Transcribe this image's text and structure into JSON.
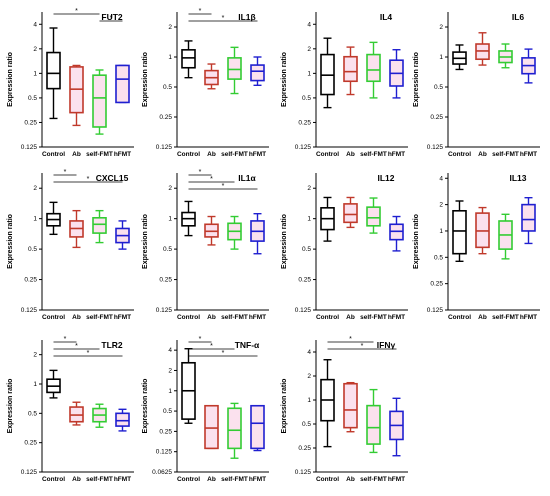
{
  "y_axis_label": "Expression ratio",
  "group_colors": {
    "Control": "#000000",
    "Ab": "#c0392b",
    "self-FMT": "#33cc33",
    "hFMT": "#1f1fd0"
  },
  "box_fill": "#fbe1ee",
  "chart_data": [
    {
      "type": "box",
      "title": "FUT2",
      "ylabel": "Expression ratio",
      "log_scale": true,
      "y_ticks": [
        "0.125",
        "0.25",
        "0.5",
        "1",
        "2",
        "4"
      ],
      "categories": [
        "Control",
        "Ab",
        "self-FMT",
        "hFMT"
      ],
      "boxes": [
        {
          "group": "Control",
          "min": 0.28,
          "q1": 0.65,
          "median": 1.0,
          "q3": 1.8,
          "max": 3.6
        },
        {
          "group": "Ab",
          "min": 0.23,
          "q1": 0.33,
          "median": 0.64,
          "q3": 1.2,
          "max": 1.25
        },
        {
          "group": "self-FMT",
          "min": 0.18,
          "q1": 0.22,
          "median": 0.5,
          "q3": 0.95,
          "max": 1.1
        },
        {
          "group": "hFMT",
          "min": 0.44,
          "q1": 0.44,
          "median": 0.85,
          "q3": 1.25,
          "max": 1.25
        }
      ],
      "significance": [
        {
          "from": "Control",
          "to": "self-FMT",
          "label": "*"
        },
        {
          "from": "self-FMT",
          "to": "hFMT",
          "label": "*"
        }
      ]
    },
    {
      "type": "box",
      "title": "IL1β",
      "ylabel": "Expression ratio",
      "log_scale": true,
      "y_ticks": [
        "0.125",
        "0.25",
        "0.5",
        "1",
        "2"
      ],
      "categories": [
        "Control",
        "Ab",
        "self-FMT",
        "hFMT"
      ],
      "boxes": [
        {
          "group": "Control",
          "min": 0.62,
          "q1": 0.78,
          "median": 0.98,
          "q3": 1.18,
          "max": 1.45
        },
        {
          "group": "Ab",
          "min": 0.48,
          "q1": 0.53,
          "median": 0.62,
          "q3": 0.73,
          "max": 0.85
        },
        {
          "group": "self-FMT",
          "min": 0.43,
          "q1": 0.6,
          "median": 0.75,
          "q3": 0.98,
          "max": 1.25
        },
        {
          "group": "hFMT",
          "min": 0.52,
          "q1": 0.58,
          "median": 0.72,
          "q3": 0.83,
          "max": 1.0
        }
      ],
      "significance": [
        {
          "from": "Control",
          "to": "Ab",
          "label": "*"
        },
        {
          "from": "Control",
          "to": "hFMT",
          "label": "*"
        }
      ]
    },
    {
      "type": "box",
      "title": "IL4",
      "ylabel": "Expression ratio",
      "log_scale": true,
      "y_ticks": [
        "0.125",
        "0.25",
        "0.5",
        "1",
        "2",
        "4"
      ],
      "categories": [
        "Control",
        "Ab",
        "self-FMT",
        "hFMT"
      ],
      "boxes": [
        {
          "group": "Control",
          "min": 0.38,
          "q1": 0.55,
          "median": 0.95,
          "q3": 1.7,
          "max": 2.7
        },
        {
          "group": "Ab",
          "min": 0.55,
          "q1": 0.8,
          "median": 1.05,
          "q3": 1.6,
          "max": 2.1
        },
        {
          "group": "self-FMT",
          "min": 0.5,
          "q1": 0.8,
          "median": 1.1,
          "q3": 1.7,
          "max": 2.4
        },
        {
          "group": "hFMT",
          "min": 0.5,
          "q1": 0.7,
          "median": 1.0,
          "q3": 1.45,
          "max": 1.95
        }
      ],
      "significance": []
    },
    {
      "type": "box",
      "title": "IL6",
      "ylabel": "Expression ratio",
      "log_scale": true,
      "y_ticks": [
        "0.125",
        "0.25",
        "0.5",
        "1",
        "2"
      ],
      "categories": [
        "Control",
        "Ab",
        "self-FMT",
        "hFMT"
      ],
      "boxes": [
        {
          "group": "Control",
          "min": 0.75,
          "q1": 0.85,
          "median": 0.97,
          "q3": 1.12,
          "max": 1.32
        },
        {
          "group": "Ab",
          "min": 0.83,
          "q1": 0.95,
          "median": 1.15,
          "q3": 1.35,
          "max": 1.75
        },
        {
          "group": "self-FMT",
          "min": 0.78,
          "q1": 0.88,
          "median": 1.0,
          "q3": 1.15,
          "max": 1.35
        },
        {
          "group": "hFMT",
          "min": 0.55,
          "q1": 0.68,
          "median": 0.82,
          "q3": 0.98,
          "max": 1.2
        }
      ],
      "significance": []
    },
    {
      "type": "box",
      "title": "CXCL15",
      "ylabel": "Expression ratio",
      "log_scale": true,
      "y_ticks": [
        "0.125",
        "0.25",
        "0.5",
        "1",
        "2"
      ],
      "categories": [
        "Control",
        "Ab",
        "self-FMT",
        "hFMT"
      ],
      "boxes": [
        {
          "group": "Control",
          "min": 0.7,
          "q1": 0.85,
          "median": 0.98,
          "q3": 1.12,
          "max": 1.45
        },
        {
          "group": "Ab",
          "min": 0.52,
          "q1": 0.66,
          "median": 0.8,
          "q3": 0.95,
          "max": 1.2
        },
        {
          "group": "self-FMT",
          "min": 0.58,
          "q1": 0.72,
          "median": 0.88,
          "q3": 1.02,
          "max": 1.2
        },
        {
          "group": "hFMT",
          "min": 0.5,
          "q1": 0.58,
          "median": 0.68,
          "q3": 0.8,
          "max": 0.95
        }
      ],
      "significance": [
        {
          "from": "Control",
          "to": "Ab",
          "label": "*"
        },
        {
          "from": "Control",
          "to": "hFMT",
          "label": "*"
        }
      ]
    },
    {
      "type": "box",
      "title": "IL1α",
      "ylabel": "Expression ratio",
      "log_scale": true,
      "y_ticks": [
        "0.125",
        "0.25",
        "0.5",
        "1",
        "2"
      ],
      "categories": [
        "Control",
        "Ab",
        "self-FMT",
        "hFMT"
      ],
      "boxes": [
        {
          "group": "Control",
          "min": 0.68,
          "q1": 0.85,
          "median": 1.0,
          "q3": 1.15,
          "max": 1.48
        },
        {
          "group": "Ab",
          "min": 0.55,
          "q1": 0.66,
          "median": 0.75,
          "q3": 0.88,
          "max": 1.05
        },
        {
          "group": "self-FMT",
          "min": 0.5,
          "q1": 0.62,
          "median": 0.75,
          "q3": 0.9,
          "max": 1.05
        },
        {
          "group": "hFMT",
          "min": 0.45,
          "q1": 0.6,
          "median": 0.75,
          "q3": 0.95,
          "max": 1.12
        }
      ],
      "significance": [
        {
          "from": "Control",
          "to": "Ab",
          "label": "*"
        },
        {
          "from": "Control",
          "to": "self-FMT",
          "label": "*"
        },
        {
          "from": "Control",
          "to": "hFMT",
          "label": "*"
        }
      ]
    },
    {
      "type": "box",
      "title": "IL12",
      "ylabel": "Expression ratio",
      "log_scale": true,
      "y_ticks": [
        "0.125",
        "0.25",
        "0.5",
        "1",
        "2"
      ],
      "categories": [
        "Control",
        "Ab",
        "self-FMT",
        "hFMT"
      ],
      "boxes": [
        {
          "group": "Control",
          "min": 0.6,
          "q1": 0.78,
          "median": 1.0,
          "q3": 1.28,
          "max": 1.62
        },
        {
          "group": "Ab",
          "min": 0.82,
          "q1": 0.92,
          "median": 1.1,
          "q3": 1.4,
          "max": 1.62
        },
        {
          "group": "self-FMT",
          "min": 0.72,
          "q1": 0.85,
          "median": 1.02,
          "q3": 1.3,
          "max": 1.6
        },
        {
          "group": "hFMT",
          "min": 0.48,
          "q1": 0.62,
          "median": 0.75,
          "q3": 0.88,
          "max": 1.05
        }
      ],
      "significance": []
    },
    {
      "type": "box",
      "title": "IL13",
      "ylabel": "Expression ratio",
      "log_scale": true,
      "y_ticks": [
        "0.125",
        "0.25",
        "0.5",
        "1",
        "2",
        "4"
      ],
      "categories": [
        "Control",
        "Ab",
        "self-FMT",
        "hFMT"
      ],
      "boxes": [
        {
          "group": "Control",
          "min": 0.45,
          "q1": 0.55,
          "median": 1.0,
          "q3": 1.7,
          "max": 2.2
        },
        {
          "group": "Ab",
          "min": 0.55,
          "q1": 0.65,
          "median": 1.0,
          "q3": 1.6,
          "max": 1.85
        },
        {
          "group": "self-FMT",
          "min": 0.48,
          "q1": 0.62,
          "median": 0.9,
          "q3": 1.3,
          "max": 1.55
        },
        {
          "group": "hFMT",
          "min": 0.72,
          "q1": 1.0,
          "median": 1.35,
          "q3": 2.0,
          "max": 2.4
        }
      ],
      "significance": []
    },
    {
      "type": "box",
      "title": "TLR2",
      "ylabel": "Expression ratio",
      "log_scale": true,
      "y_ticks": [
        "0.125",
        "0.25",
        "0.5",
        "1",
        "2"
      ],
      "categories": [
        "Control",
        "Ab",
        "self-FMT",
        "hFMT"
      ],
      "boxes": [
        {
          "group": "Control",
          "min": 0.72,
          "q1": 0.82,
          "median": 0.95,
          "q3": 1.12,
          "max": 1.38
        },
        {
          "group": "Ab",
          "min": 0.38,
          "q1": 0.41,
          "median": 0.48,
          "q3": 0.58,
          "max": 0.65
        },
        {
          "group": "self-FMT",
          "min": 0.36,
          "q1": 0.41,
          "median": 0.48,
          "q3": 0.56,
          "max": 0.62
        },
        {
          "group": "hFMT",
          "min": 0.33,
          "q1": 0.37,
          "median": 0.42,
          "q3": 0.5,
          "max": 0.55
        }
      ],
      "significance": [
        {
          "from": "Control",
          "to": "Ab",
          "label": "*"
        },
        {
          "from": "Control",
          "to": "self-FMT",
          "label": "*"
        },
        {
          "from": "Control",
          "to": "hFMT",
          "label": "*"
        }
      ]
    },
    {
      "type": "box",
      "title": "TNF-α",
      "ylabel": "Expression ratio",
      "log_scale": true,
      "y_ticks": [
        "0.0625",
        "0.125",
        "0.25",
        "0.5",
        "1",
        "2",
        "4"
      ],
      "categories": [
        "Control",
        "Ab",
        "self-FMT",
        "hFMT"
      ],
      "boxes": [
        {
          "group": "Control",
          "min": 0.33,
          "q1": 0.38,
          "median": 1.0,
          "q3": 2.6,
          "max": 4.2
        },
        {
          "group": "Ab",
          "min": 0.14,
          "q1": 0.14,
          "median": 0.28,
          "q3": 0.6,
          "max": 0.6
        },
        {
          "group": "self-FMT",
          "min": 0.1,
          "q1": 0.14,
          "median": 0.26,
          "q3": 0.55,
          "max": 0.65
        },
        {
          "group": "hFMT",
          "min": 0.13,
          "q1": 0.14,
          "median": 0.33,
          "q3": 0.6,
          "max": 0.6
        }
      ],
      "significance": [
        {
          "from": "Control",
          "to": "Ab",
          "label": "*"
        },
        {
          "from": "Control",
          "to": "self-FMT",
          "label": "*"
        },
        {
          "from": "Control",
          "to": "hFMT",
          "label": "*"
        }
      ]
    },
    {
      "type": "box",
      "title": "IFNγ",
      "ylabel": "Expression ratio",
      "log_scale": true,
      "y_ticks": [
        "0.125",
        "0.25",
        "0.5",
        "1",
        "2",
        "4"
      ],
      "categories": [
        "Control",
        "Ab",
        "self-FMT",
        "hFMT"
      ],
      "boxes": [
        {
          "group": "Control",
          "min": 0.26,
          "q1": 0.55,
          "median": 1.0,
          "q3": 1.8,
          "max": 3.2
        },
        {
          "group": "Ab",
          "min": 0.4,
          "q1": 0.45,
          "median": 0.75,
          "q3": 1.6,
          "max": 1.65
        },
        {
          "group": "self-FMT",
          "min": 0.22,
          "q1": 0.28,
          "median": 0.45,
          "q3": 0.85,
          "max": 1.35
        },
        {
          "group": "hFMT",
          "min": 0.2,
          "q1": 0.32,
          "median": 0.48,
          "q3": 0.72,
          "max": 1.05
        }
      ],
      "significance": [
        {
          "from": "Control",
          "to": "self-FMT",
          "label": "*"
        },
        {
          "from": "Control",
          "to": "hFMT",
          "label": "*"
        }
      ]
    }
  ]
}
